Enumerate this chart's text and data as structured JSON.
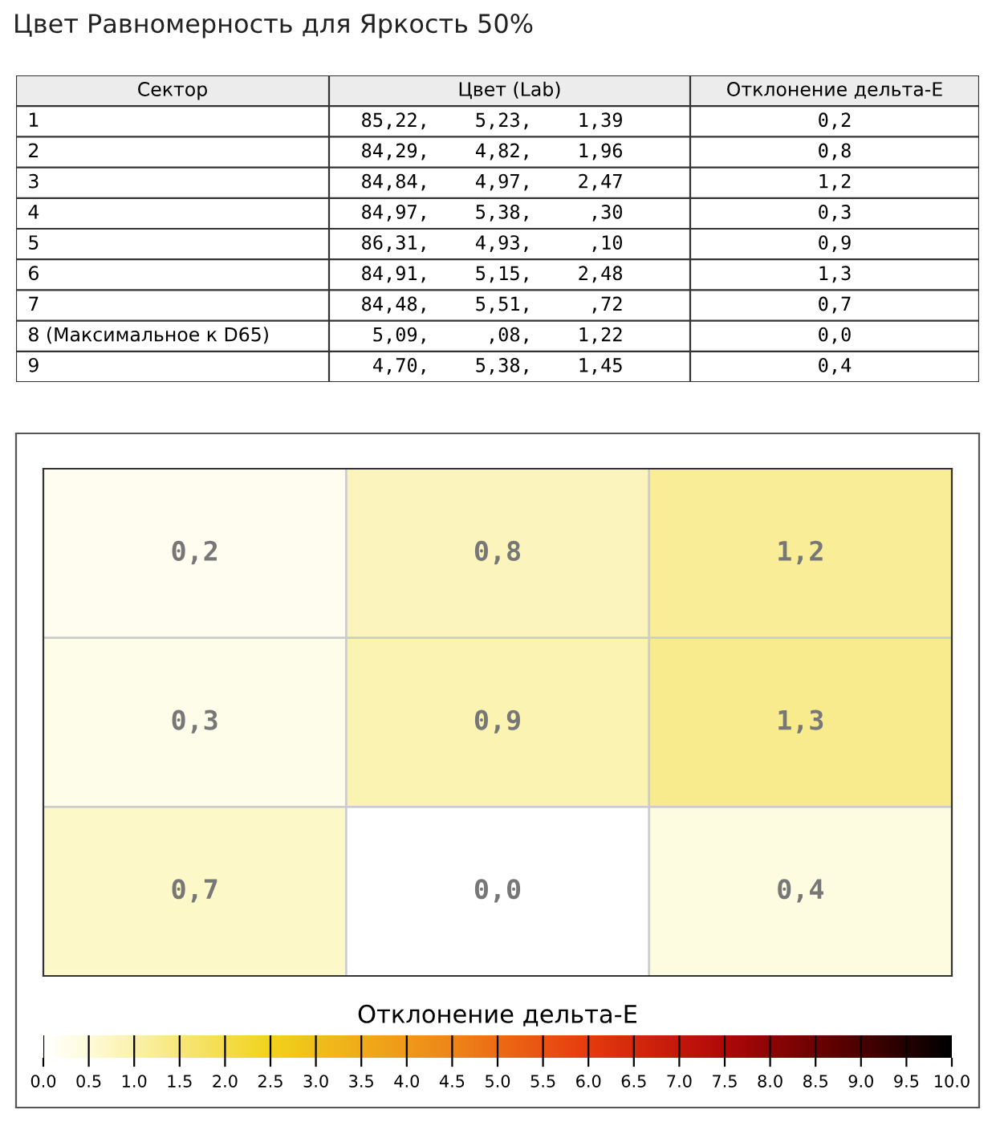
{
  "chart_data": {
    "type": "heatmap",
    "title": "Цвет Равномерность для Яркость 50%",
    "categories": [
      null,
      null,
      null
    ],
    "y_categories": [
      null,
      null,
      null
    ],
    "cells": [
      [
        0.2,
        0.8,
        1.2
      ],
      [
        0.3,
        0.9,
        1.3
      ],
      [
        0.7,
        0.0,
        0.4
      ]
    ],
    "cell_labels": [
      [
        "0,2",
        "0,8",
        "1,2"
      ],
      [
        "0,3",
        "0,9",
        "1,3"
      ],
      [
        "0,7",
        "0,0",
        "0,4"
      ]
    ],
    "clabel": "Отклонение дельта-E",
    "clim": [
      0,
      10
    ],
    "cticks": [
      {
        "value": 0,
        "label": "0.0"
      },
      0.5,
      {
        "value": 1,
        "label": "1.0"
      },
      1.5,
      {
        "value": 2,
        "label": "2.0"
      },
      2.5,
      {
        "value": 3,
        "label": "3.0"
      },
      3.5,
      {
        "value": 4,
        "label": "4.0"
      },
      4.5,
      {
        "value": 5,
        "label": "5.0"
      },
      5.5,
      {
        "value": 6,
        "label": "6.0"
      },
      6.5,
      {
        "value": 7,
        "label": "7.0"
      },
      7.5,
      {
        "value": 8,
        "label": "8.0"
      },
      8.5,
      {
        "value": 9,
        "label": "9.0"
      },
      9.5,
      {
        "value": 10,
        "label": "10.0"
      }
    ],
    "grid": true,
    "annotations": [
      "Сектор",
      "Цвет (Lab)",
      "Отклонение дельта-E",
      "1",
      "85,22,    5,23,    1,39",
      "2",
      "84,29,    4,82,    1,96",
      "3",
      "84,84,    4,97,    2,47",
      "4",
      "84,97,    5,38,     ,30",
      "5",
      "86,31,    4,93,     ,10",
      "6",
      "84,91,    5,15,    2,48",
      "7",
      "84,48,    5,51,     ,72",
      "8 (Максимальное к D65)",
      " 5,09,     ,08,    1,22",
      "9",
      " 4,70,    5,38,    1,45"
    ]
  }
}
